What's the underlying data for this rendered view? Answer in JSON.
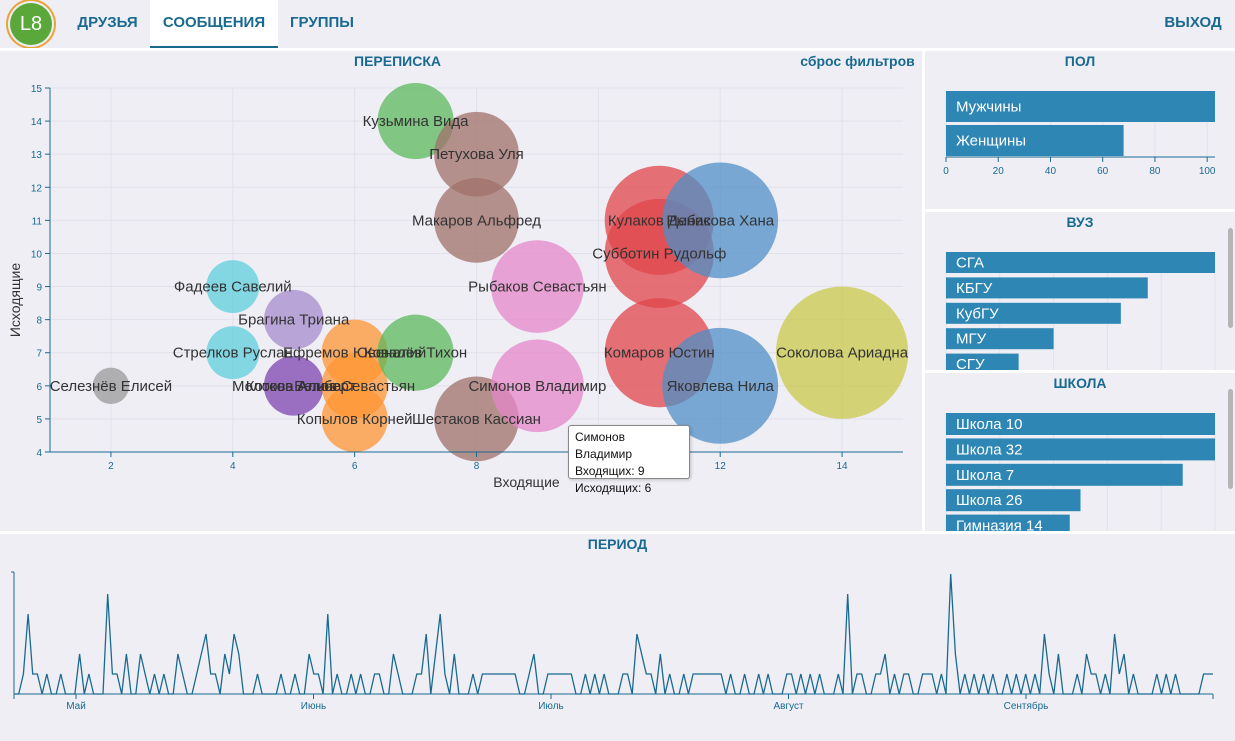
{
  "app": {
    "logo_text": "L8"
  },
  "nav": {
    "friends": "ДРУЗЬЯ",
    "messages": "СООБЩЕНИЯ",
    "groups": "ГРУППЫ",
    "logout": "ВЫХОД"
  },
  "correspondence": {
    "title": "ПЕРЕПИСКА",
    "reset": "сброс фильтров",
    "xlabel": "Входящие",
    "ylabel": "Исходящие"
  },
  "gender_panel": {
    "title": "ПОЛ"
  },
  "university_panel": {
    "title": "ВУЗ"
  },
  "school_panel": {
    "title": "ШКОЛА"
  },
  "period_panel": {
    "title": "ПЕРИОД"
  },
  "tooltip": {
    "name": "Симонов Владимир",
    "incoming": "Входящих: 9",
    "outgoing": "Исходящих: 6"
  },
  "chart_data": [
    {
      "type": "scatter",
      "title": "ПЕРЕПИСКА",
      "xlabel": "Входящие",
      "ylabel": "Исходящие",
      "xlim": [
        1,
        15
      ],
      "ylim": [
        4,
        15
      ],
      "xticks": [
        2,
        4,
        6,
        8,
        10,
        12,
        14
      ],
      "yticks": [
        4,
        5,
        6,
        7,
        8,
        9,
        10,
        11,
        12,
        13,
        14,
        15
      ],
      "grid": true,
      "points": [
        {
          "name": "Селезнёв Елисей",
          "x": 2,
          "y": 6,
          "size": 0.55,
          "color": "#999999"
        },
        {
          "name": "Фадеев Савелий",
          "x": 4,
          "y": 9,
          "size": 0.8,
          "color": "#5ecfdc"
        },
        {
          "name": "Стрелков Руслан",
          "x": 4,
          "y": 7,
          "size": 0.8,
          "color": "#5ecfdc"
        },
        {
          "name": "Брагина Триана",
          "x": 5,
          "y": 8,
          "size": 0.9,
          "color": "#a68bcc"
        },
        {
          "name": "Молоков Альберт",
          "x": 5,
          "y": 6,
          "size": 0.9,
          "color": "#9466bd"
        },
        {
          "name": "Котова Алина",
          "x": 5,
          "y": 6,
          "size": 0.9,
          "color": "#9466bd"
        },
        {
          "name": "Ефремов Ювеналий",
          "x": 6,
          "y": 7,
          "size": 1.0,
          "color": "#ff9533"
        },
        {
          "name": "Белов Севастьян",
          "x": 6,
          "y": 6,
          "size": 1.0,
          "color": "#ff9533"
        },
        {
          "name": "Копылов Корней",
          "x": 6,
          "y": 5,
          "size": 1.0,
          "color": "#ff9533"
        },
        {
          "name": "Ковалёв Тихон",
          "x": 7,
          "y": 7,
          "size": 1.15,
          "color": "#5cb85c"
        },
        {
          "name": "Кузьмина Вида",
          "x": 7,
          "y": 14,
          "size": 1.15,
          "color": "#5cb85c"
        },
        {
          "name": "Петухова Уля",
          "x": 8,
          "y": 13,
          "size": 1.28,
          "color": "#a0706a"
        },
        {
          "name": "Макаров Альфред",
          "x": 8,
          "y": 11,
          "size": 1.28,
          "color": "#a0706a"
        },
        {
          "name": "Шестаков Кассиан",
          "x": 8,
          "y": 5,
          "size": 1.28,
          "color": "#a0706a"
        },
        {
          "name": "Рыбаков Севастьян",
          "x": 9,
          "y": 9,
          "size": 1.4,
          "color": "#e687c8"
        },
        {
          "name": "Симонов Владимир",
          "x": 9,
          "y": 6,
          "size": 1.4,
          "color": "#e687c8"
        },
        {
          "name": "Кулаков Денис",
          "x": 11,
          "y": 11,
          "size": 1.65,
          "color": "#e0454b"
        },
        {
          "name": "Субботин Рудольф",
          "x": 11,
          "y": 10,
          "size": 1.65,
          "color": "#e0454b"
        },
        {
          "name": "Комаров Юстин",
          "x": 11,
          "y": 7,
          "size": 1.65,
          "color": "#e0454b"
        },
        {
          "name": "Рыбакова Хана",
          "x": 12,
          "y": 11,
          "size": 1.75,
          "color": "#4f8fc6"
        },
        {
          "name": "Яковлева Нила",
          "x": 12,
          "y": 6,
          "size": 1.75,
          "color": "#4f8fc6"
        },
        {
          "name": "Соколова Ариадна",
          "x": 14,
          "y": 7,
          "size": 2.0,
          "color": "#c9c84a"
        }
      ]
    },
    {
      "type": "bar",
      "orientation": "horizontal",
      "title": "ПОЛ",
      "categories": [
        "Мужчины",
        "Женщины"
      ],
      "values": [
        103,
        68
      ],
      "xlim": [
        0,
        103
      ],
      "xticks": [
        0,
        20,
        40,
        60,
        80,
        100
      ],
      "color": "#2e86b4"
    },
    {
      "type": "bar",
      "orientation": "horizontal",
      "title": "ВУЗ",
      "categories": [
        "СГА",
        "КБГУ",
        "КубГУ",
        "МГУ",
        "СГУ"
      ],
      "values": [
        100,
        75,
        65,
        40,
        27
      ],
      "xlim": [
        0,
        100
      ],
      "color": "#2e86b4"
    },
    {
      "type": "bar",
      "orientation": "horizontal",
      "title": "ШКОЛА",
      "categories": [
        "Школа 10",
        "Школа 32",
        "Школа 7",
        "Школа 26",
        "Гимназия 14"
      ],
      "values": [
        100,
        100,
        88,
        50,
        46
      ],
      "xlim": [
        0,
        100
      ],
      "color": "#2e86b4"
    },
    {
      "type": "line",
      "title": "ПЕРИОД",
      "x_tick_labels": [
        "Май",
        "Июнь",
        "Июль",
        "Август",
        "Сентябрь"
      ],
      "series": [
        {
          "values": [
            0,
            0,
            1,
            4,
            1,
            1,
            0,
            1,
            0,
            0,
            1,
            0,
            0,
            0,
            2,
            0,
            1,
            0,
            0,
            0,
            5,
            1,
            1,
            0,
            2,
            0,
            0,
            2,
            1,
            0,
            1,
            0,
            1,
            0,
            0,
            2,
            1,
            0,
            0,
            1,
            2,
            3,
            1,
            1,
            0,
            2,
            1,
            3,
            2,
            0,
            0,
            0,
            1,
            0,
            0,
            0,
            0,
            1,
            0,
            0,
            1,
            0,
            0,
            2,
            1,
            1,
            0,
            4,
            0,
            1,
            0,
            0,
            1,
            0,
            1,
            0,
            0,
            1,
            1,
            0,
            0,
            2,
            1,
            0,
            0,
            0,
            1,
            1,
            3,
            0,
            2,
            4,
            1,
            0,
            2,
            0,
            0,
            0,
            1,
            0,
            1,
            1,
            1,
            1,
            1,
            1,
            1,
            1,
            0,
            0,
            1,
            2,
            0,
            0,
            1,
            1,
            1,
            1,
            1,
            1,
            0,
            0,
            1,
            0,
            1,
            0,
            1,
            0,
            0,
            0,
            1,
            1,
            0,
            3,
            2,
            1,
            1,
            0,
            2,
            0,
            1,
            0,
            0,
            1,
            0,
            1,
            1,
            1,
            1,
            1,
            1,
            1,
            0,
            1,
            0,
            0,
            1,
            0,
            0,
            1,
            0,
            1,
            0,
            0,
            0,
            1,
            1,
            0,
            1,
            0,
            1,
            0,
            1,
            0,
            0,
            0,
            1,
            0,
            5,
            0,
            1,
            1,
            0,
            0,
            1,
            1,
            2,
            0,
            1,
            0,
            1,
            1,
            0,
            0,
            1,
            1,
            1,
            0,
            1,
            0,
            6,
            2,
            0,
            1,
            0,
            1,
            0,
            1,
            0,
            1,
            0,
            0,
            1,
            0,
            1,
            0,
            1,
            0,
            1,
            0,
            3,
            1,
            0,
            2,
            0,
            0,
            0,
            1,
            0,
            2,
            1,
            1,
            0,
            1,
            0,
            3,
            1,
            2,
            0,
            1,
            0,
            0,
            0,
            0,
            1,
            0,
            1,
            0,
            1,
            0,
            0,
            0,
            0,
            0,
            1,
            1,
            1
          ],
          "color": "#1a6a90"
        }
      ]
    }
  ]
}
